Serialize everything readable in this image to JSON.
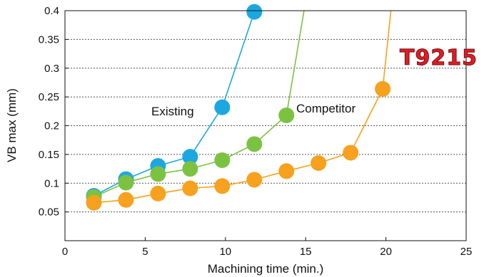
{
  "brand": {
    "text": "T9215",
    "color": "#e31b23"
  },
  "chart_data": {
    "type": "line",
    "title": "",
    "xlabel": "Machining time (min.)",
    "ylabel": "VB max (mm)",
    "xlim": [
      0,
      25
    ],
    "ylim": [
      0,
      0.4
    ],
    "x_ticks": [
      "0",
      "5",
      "10",
      "15",
      "20",
      "25"
    ],
    "y_ticks": [
      "0.05",
      "0.1",
      "0.15",
      "0.2",
      "0.25",
      "0.3",
      "0.35",
      "0.4"
    ],
    "grid": "horizontal-dotted",
    "series": [
      {
        "name": "Existing",
        "color": "#1ba8e2",
        "points": [
          [
            1.8,
            0.078
          ],
          [
            3.8,
            0.107
          ],
          [
            5.8,
            0.13
          ],
          [
            7.8,
            0.146
          ],
          [
            9.8,
            0.232
          ],
          [
            11.8,
            0.398
          ]
        ],
        "tail": [
          12.2,
          0.45
        ]
      },
      {
        "name": "Competitor",
        "color": "#7cc242",
        "points": [
          [
            1.8,
            0.076
          ],
          [
            3.8,
            0.101
          ],
          [
            5.8,
            0.116
          ],
          [
            7.8,
            0.125
          ],
          [
            9.8,
            0.14
          ],
          [
            11.8,
            0.168
          ],
          [
            13.8,
            0.218
          ]
        ],
        "tail": [
          15.2,
          0.45
        ]
      },
      {
        "name": "",
        "color": "#f7a11e",
        "points": [
          [
            1.8,
            0.066
          ],
          [
            3.8,
            0.071
          ],
          [
            5.8,
            0.082
          ],
          [
            7.8,
            0.091
          ],
          [
            9.8,
            0.095
          ],
          [
            11.8,
            0.106
          ],
          [
            13.8,
            0.121
          ],
          [
            15.8,
            0.135
          ],
          [
            17.8,
            0.153
          ],
          [
            19.8,
            0.264
          ]
        ],
        "tail": [
          20.5,
          0.45
        ]
      }
    ]
  }
}
